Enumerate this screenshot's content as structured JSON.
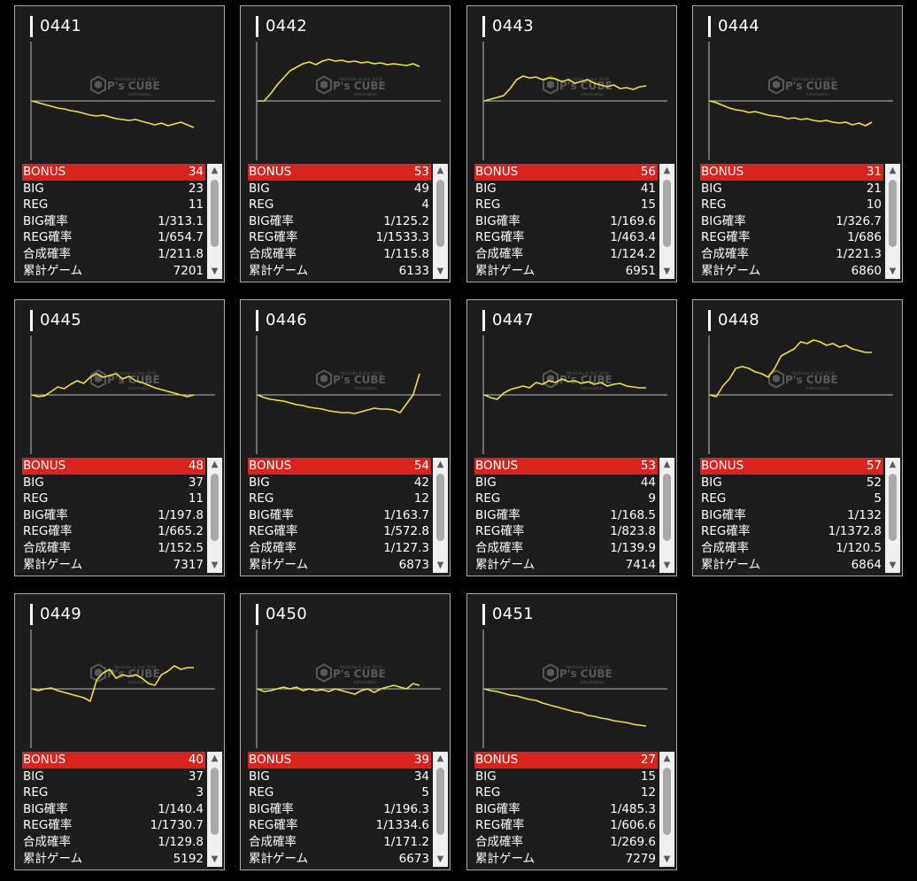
{
  "labels": {
    "bonus": "BONUS",
    "big": "BIG",
    "reg": "REG",
    "big_rate": "BIG確率",
    "reg_rate": "REG確率",
    "total_rate": "合成確率",
    "total_games": "累計ゲーム"
  },
  "watermark": {
    "brand": "P's CUBE",
    "tagline": "Pachinko & Slot 2018",
    "subline": "information"
  },
  "colors": {
    "background": "#000000",
    "card": "#1c1c1c",
    "bonus_bar": "#d8231e",
    "graph_line": "#f1e23a",
    "baseline": "#bdbdbd"
  },
  "icons": {
    "scroll_up": "scroll-up-arrow-icon",
    "scroll_down": "scroll-down-arrow-icon",
    "logo": "ps-cube-logo-icon"
  },
  "machines": [
    {
      "id": "0441",
      "bonus": "34",
      "big": "23",
      "reg": "11",
      "big_rate": "1/313.1",
      "reg_rate": "1/654.7",
      "total_rate": "1/211.8",
      "games": "7201",
      "trend": [
        0,
        -2,
        -4,
        -6,
        -8,
        -9,
        -11,
        -12,
        -14,
        -16,
        -17,
        -16,
        -18,
        -20,
        -21,
        -22,
        -21,
        -23,
        -25,
        -27,
        -25,
        -28,
        -26,
        -24,
        -27,
        -30
      ]
    },
    {
      "id": "0442",
      "bonus": "53",
      "big": "49",
      "reg": "4",
      "big_rate": "1/125.2",
      "reg_rate": "1/1533.3",
      "total_rate": "1/115.8",
      "games": "6133",
      "trend": [
        0,
        0,
        8,
        18,
        26,
        34,
        38,
        42,
        44,
        41,
        45,
        47,
        45,
        46,
        44,
        45,
        43,
        44,
        42,
        43,
        41,
        42,
        41,
        40,
        42,
        39
      ]
    },
    {
      "id": "0443",
      "bonus": "56",
      "big": "41",
      "reg": "15",
      "big_rate": "1/169.6",
      "reg_rate": "1/463.4",
      "total_rate": "1/124.2",
      "games": "6951",
      "trend": [
        0,
        2,
        4,
        6,
        14,
        24,
        28,
        26,
        27,
        24,
        26,
        25,
        22,
        24,
        20,
        22,
        24,
        20,
        18,
        16,
        18,
        14,
        15,
        13,
        16,
        17
      ]
    },
    {
      "id": "0444",
      "bonus": "31",
      "big": "21",
      "reg": "10",
      "big_rate": "1/326.7",
      "reg_rate": "1/686",
      "total_rate": "1/221.3",
      "games": "6860",
      "trend": [
        0,
        -2,
        -5,
        -8,
        -10,
        -11,
        -13,
        -12,
        -14,
        -16,
        -17,
        -18,
        -20,
        -19,
        -21,
        -20,
        -22,
        -23,
        -22,
        -24,
        -25,
        -24,
        -27,
        -25,
        -28,
        -24
      ]
    },
    {
      "id": "0445",
      "bonus": "48",
      "big": "37",
      "reg": "11",
      "big_rate": "1/197.8",
      "reg_rate": "1/665.2",
      "total_rate": "1/152.5",
      "games": "7317",
      "trend": [
        0,
        -2,
        -1,
        4,
        9,
        7,
        12,
        16,
        13,
        20,
        24,
        20,
        22,
        24,
        18,
        21,
        16,
        14,
        11,
        8,
        6,
        4,
        2,
        0,
        -2,
        0
      ]
    },
    {
      "id": "0446",
      "bonus": "54",
      "big": "42",
      "reg": "12",
      "big_rate": "1/163.7",
      "reg_rate": "1/572.8",
      "total_rate": "1/127.3",
      "games": "6873",
      "trend": [
        0,
        -3,
        -5,
        -6,
        -7,
        -9,
        -11,
        -12,
        -14,
        -15,
        -16,
        -18,
        -19,
        -20,
        -20,
        -21,
        -19,
        -17,
        -15,
        -16,
        -16,
        -17,
        -20,
        -10,
        0,
        24
      ]
    },
    {
      "id": "0447",
      "bonus": "53",
      "big": "44",
      "reg": "9",
      "big_rate": "1/168.5",
      "reg_rate": "1/823.8",
      "total_rate": "1/139.9",
      "games": "7414",
      "trend": [
        0,
        -3,
        -5,
        2,
        6,
        8,
        10,
        8,
        14,
        12,
        16,
        14,
        18,
        15,
        16,
        13,
        15,
        12,
        14,
        10,
        12,
        13,
        10,
        9,
        8,
        8
      ]
    },
    {
      "id": "0448",
      "bonus": "57",
      "big": "52",
      "reg": "5",
      "big_rate": "1/132",
      "reg_rate": "1/1372.8",
      "total_rate": "1/120.5",
      "games": "6864",
      "trend": [
        0,
        -2,
        10,
        18,
        30,
        32,
        30,
        26,
        24,
        20,
        30,
        44,
        48,
        52,
        60,
        58,
        62,
        60,
        56,
        58,
        54,
        56,
        52,
        50,
        48,
        48
      ]
    },
    {
      "id": "0449",
      "bonus": "40",
      "big": "37",
      "reg": "3",
      "big_rate": "1/140.4",
      "reg_rate": "1/1730.7",
      "total_rate": "1/129.8",
      "games": "5192",
      "trend": [
        0,
        -2,
        0,
        1,
        -2,
        -4,
        -6,
        -8,
        -10,
        -14,
        10,
        18,
        22,
        12,
        16,
        14,
        16,
        12,
        6,
        4,
        16,
        20,
        26,
        22,
        24,
        24
      ]
    },
    {
      "id": "0450",
      "bonus": "39",
      "big": "34",
      "reg": "5",
      "big_rate": "1/196.3",
      "reg_rate": "1/1334.6",
      "total_rate": "1/171.2",
      "games": "6673",
      "trend": [
        0,
        -3,
        -2,
        0,
        2,
        0,
        2,
        -2,
        0,
        -2,
        -1,
        -3,
        0,
        -2,
        -4,
        -6,
        -2,
        0,
        -4,
        0,
        2,
        4,
        2,
        0,
        6,
        4
      ]
    },
    {
      "id": "0451",
      "bonus": "27",
      "big": "15",
      "reg": "12",
      "big_rate": "1/485.3",
      "reg_rate": "1/606.6",
      "total_rate": "1/269.6",
      "games": "7279",
      "trend": [
        0,
        -2,
        -3,
        -5,
        -7,
        -8,
        -10,
        -12,
        -13,
        -16,
        -18,
        -20,
        -22,
        -24,
        -26,
        -27,
        -30,
        -31,
        -33,
        -34,
        -36,
        -37,
        -38,
        -40,
        -41,
        -42
      ]
    }
  ]
}
